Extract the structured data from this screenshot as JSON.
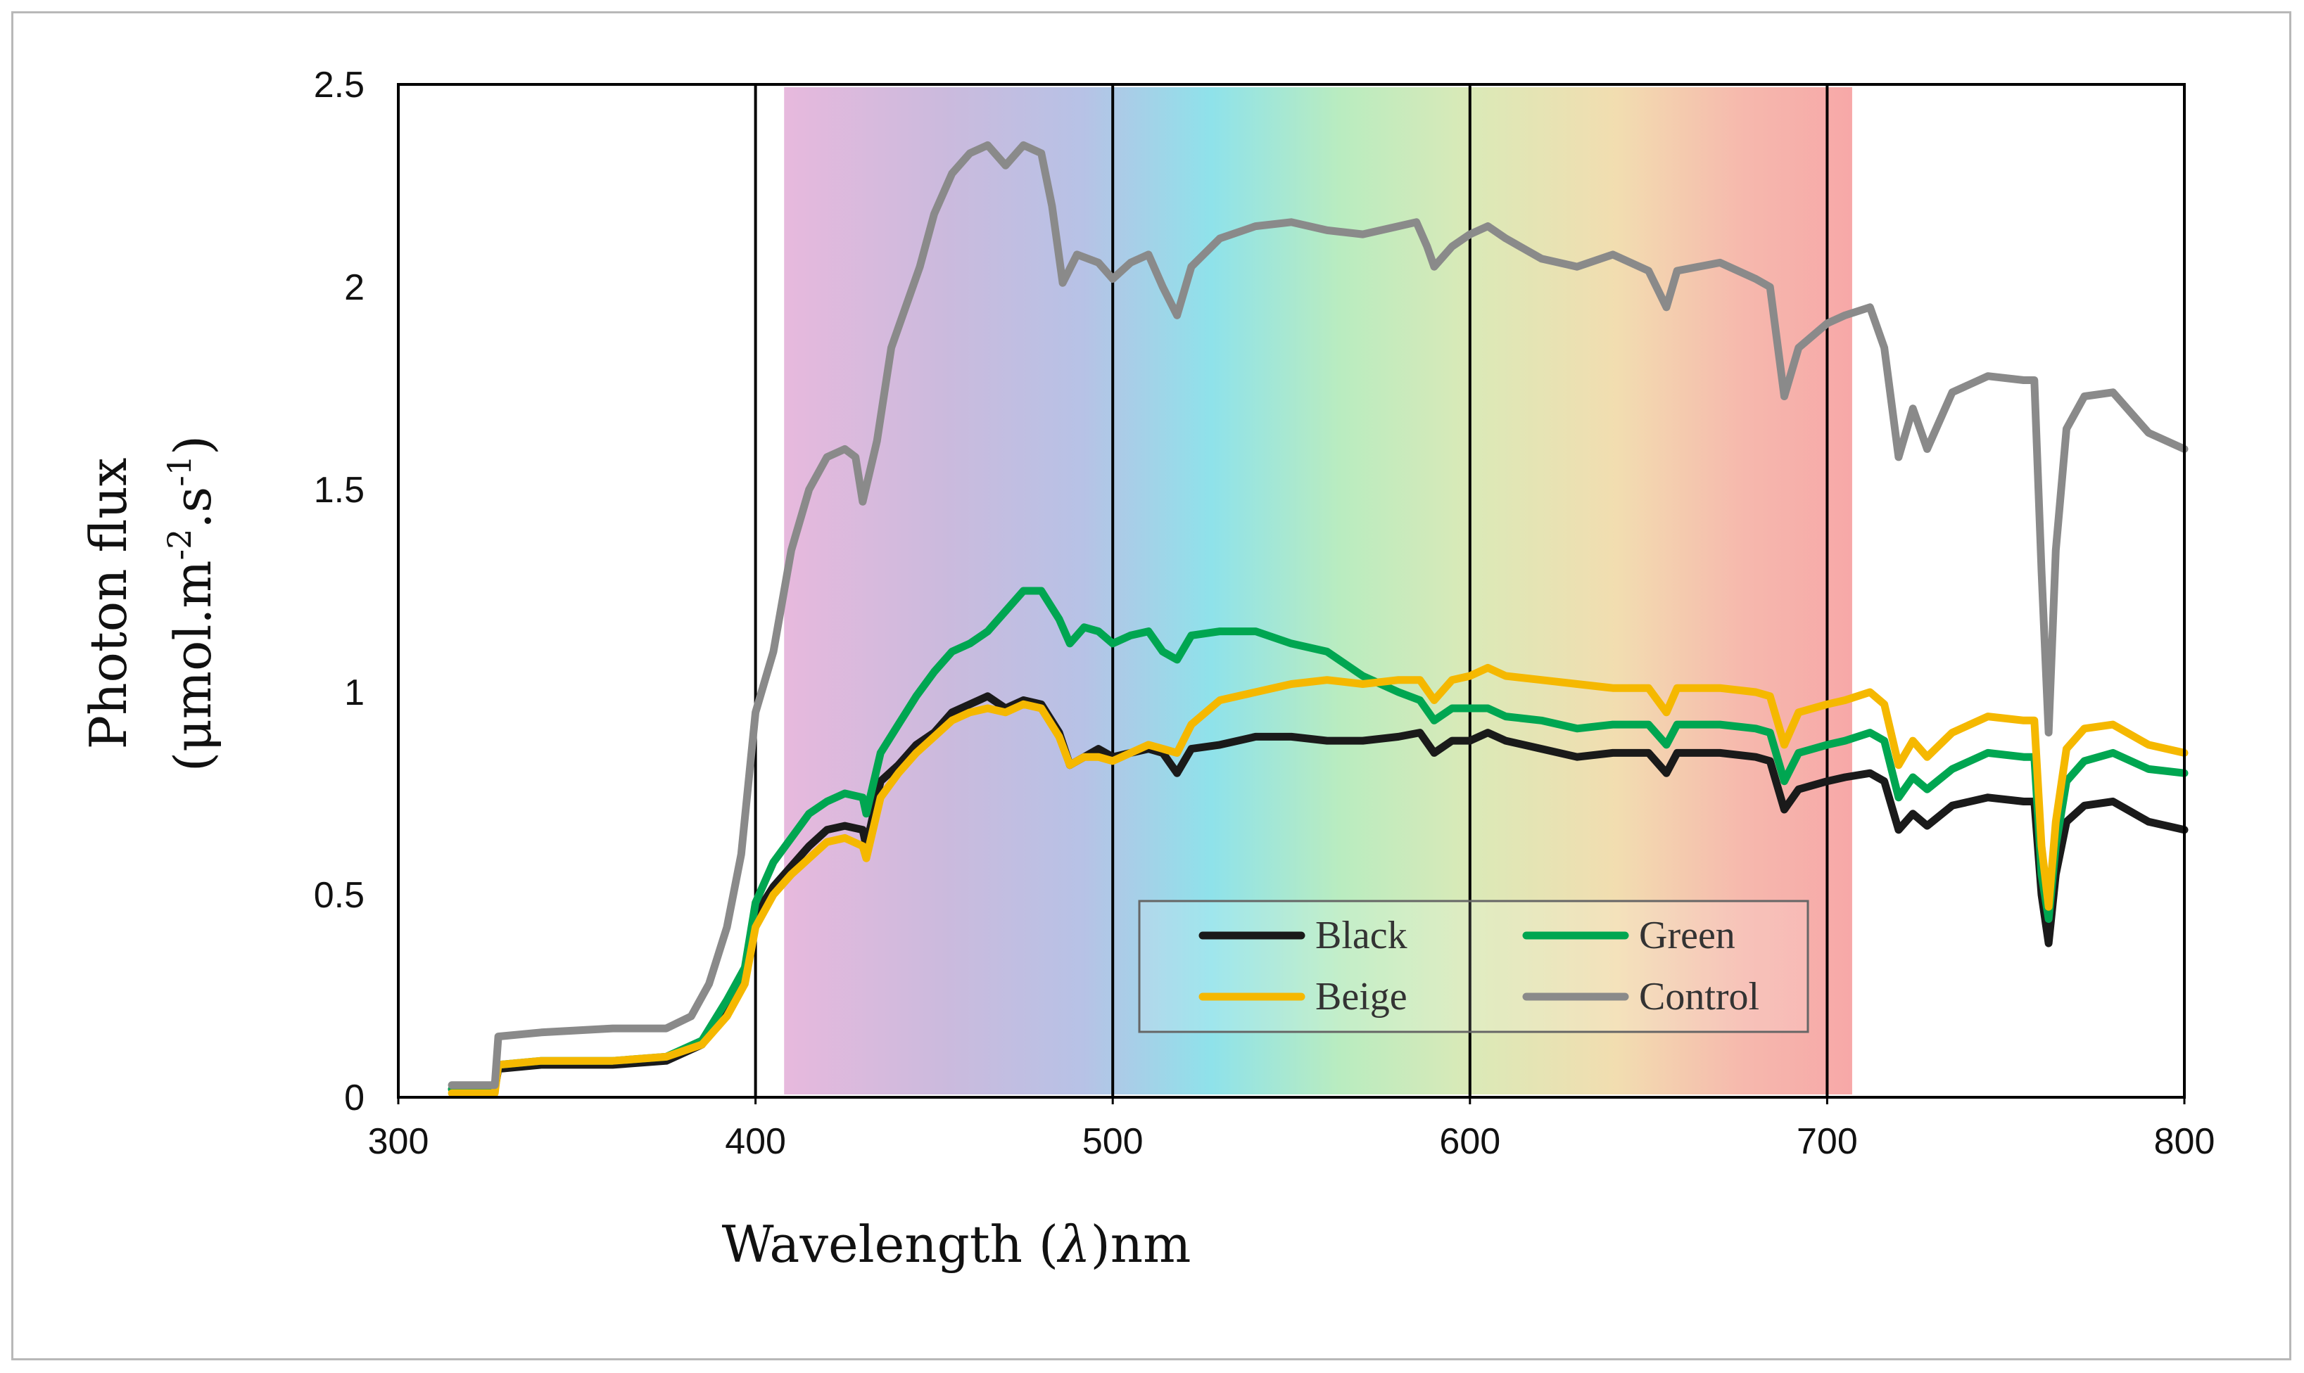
{
  "chart_data": {
    "type": "line",
    "xlabel_main": "Wavelength (",
    "xlabel_symbol": "λ",
    "xlabel_unit": ")nm",
    "ylabel_line1": "Photon flux",
    "ylabel_line2_prefix": "(μmol.m",
    "ylabel_sup1": "-2",
    "ylabel_mid": ".s",
    "ylabel_sup2": "-1",
    "ylabel_suffix": ")",
    "xlim": [
      300,
      800
    ],
    "ylim": [
      0,
      2.5
    ],
    "xticks": [
      "300",
      "400",
      "500",
      "600",
      "700",
      "800"
    ],
    "yticks": [
      "0",
      "0.5",
      "1",
      "1.5",
      "2",
      "2.5"
    ],
    "vertical_lines": [
      400,
      500,
      600,
      700
    ],
    "spectrum_band": [
      408,
      707
    ],
    "legend_position": "bottom-center",
    "series": [
      {
        "name": "Black",
        "color": "#1a1a1a",
        "points": [
          [
            315,
            0.02
          ],
          [
            327,
            0.02
          ],
          [
            328,
            0.07
          ],
          [
            340,
            0.08
          ],
          [
            360,
            0.08
          ],
          [
            375,
            0.09
          ],
          [
            385,
            0.13
          ],
          [
            392,
            0.22
          ],
          [
            397,
            0.3
          ],
          [
            400,
            0.45
          ],
          [
            405,
            0.52
          ],
          [
            410,
            0.57
          ],
          [
            415,
            0.62
          ],
          [
            420,
            0.66
          ],
          [
            425,
            0.67
          ],
          [
            430,
            0.66
          ],
          [
            431,
            0.62
          ],
          [
            435,
            0.78
          ],
          [
            440,
            0.82
          ],
          [
            445,
            0.87
          ],
          [
            450,
            0.9
          ],
          [
            455,
            0.95
          ],
          [
            460,
            0.97
          ],
          [
            465,
            0.99
          ],
          [
            470,
            0.96
          ],
          [
            475,
            0.98
          ],
          [
            480,
            0.97
          ],
          [
            485,
            0.9
          ],
          [
            488,
            0.82
          ],
          [
            492,
            0.84
          ],
          [
            496,
            0.86
          ],
          [
            500,
            0.84
          ],
          [
            505,
            0.85
          ],
          [
            510,
            0.86
          ],
          [
            514,
            0.85
          ],
          [
            518,
            0.8
          ],
          [
            522,
            0.86
          ],
          [
            530,
            0.87
          ],
          [
            540,
            0.89
          ],
          [
            550,
            0.89
          ],
          [
            560,
            0.88
          ],
          [
            570,
            0.88
          ],
          [
            580,
            0.89
          ],
          [
            586,
            0.9
          ],
          [
            590,
            0.85
          ],
          [
            595,
            0.88
          ],
          [
            600,
            0.88
          ],
          [
            605,
            0.9
          ],
          [
            610,
            0.88
          ],
          [
            620,
            0.86
          ],
          [
            630,
            0.84
          ],
          [
            640,
            0.85
          ],
          [
            650,
            0.85
          ],
          [
            655,
            0.8
          ],
          [
            658,
            0.85
          ],
          [
            670,
            0.85
          ],
          [
            680,
            0.84
          ],
          [
            684,
            0.83
          ],
          [
            688,
            0.71
          ],
          [
            692,
            0.76
          ],
          [
            700,
            0.78
          ],
          [
            705,
            0.79
          ],
          [
            712,
            0.8
          ],
          [
            716,
            0.78
          ],
          [
            720,
            0.66
          ],
          [
            724,
            0.7
          ],
          [
            728,
            0.67
          ],
          [
            735,
            0.72
          ],
          [
            745,
            0.74
          ],
          [
            755,
            0.73
          ],
          [
            758,
            0.73
          ],
          [
            760,
            0.5
          ],
          [
            762,
            0.38
          ],
          [
            764,
            0.55
          ],
          [
            767,
            0.68
          ],
          [
            772,
            0.72
          ],
          [
            780,
            0.73
          ],
          [
            790,
            0.68
          ],
          [
            800,
            0.66
          ]
        ]
      },
      {
        "name": "Green",
        "color": "#00a651",
        "points": [
          [
            315,
            0.02
          ],
          [
            327,
            0.02
          ],
          [
            328,
            0.08
          ],
          [
            340,
            0.09
          ],
          [
            360,
            0.09
          ],
          [
            375,
            0.1
          ],
          [
            385,
            0.14
          ],
          [
            392,
            0.24
          ],
          [
            397,
            0.32
          ],
          [
            400,
            0.48
          ],
          [
            405,
            0.58
          ],
          [
            410,
            0.64
          ],
          [
            415,
            0.7
          ],
          [
            420,
            0.73
          ],
          [
            425,
            0.75
          ],
          [
            430,
            0.74
          ],
          [
            431,
            0.7
          ],
          [
            435,
            0.85
          ],
          [
            440,
            0.92
          ],
          [
            445,
            0.99
          ],
          [
            450,
            1.05
          ],
          [
            455,
            1.1
          ],
          [
            460,
            1.12
          ],
          [
            465,
            1.15
          ],
          [
            470,
            1.2
          ],
          [
            475,
            1.25
          ],
          [
            480,
            1.25
          ],
          [
            485,
            1.18
          ],
          [
            488,
            1.12
          ],
          [
            492,
            1.16
          ],
          [
            496,
            1.15
          ],
          [
            500,
            1.12
          ],
          [
            505,
            1.14
          ],
          [
            510,
            1.15
          ],
          [
            514,
            1.1
          ],
          [
            518,
            1.08
          ],
          [
            522,
            1.14
          ],
          [
            530,
            1.15
          ],
          [
            540,
            1.15
          ],
          [
            550,
            1.12
          ],
          [
            560,
            1.1
          ],
          [
            570,
            1.04
          ],
          [
            580,
            1.0
          ],
          [
            586,
            0.98
          ],
          [
            590,
            0.93
          ],
          [
            595,
            0.96
          ],
          [
            600,
            0.96
          ],
          [
            605,
            0.96
          ],
          [
            610,
            0.94
          ],
          [
            620,
            0.93
          ],
          [
            630,
            0.91
          ],
          [
            640,
            0.92
          ],
          [
            650,
            0.92
          ],
          [
            655,
            0.87
          ],
          [
            658,
            0.92
          ],
          [
            670,
            0.92
          ],
          [
            680,
            0.91
          ],
          [
            684,
            0.9
          ],
          [
            688,
            0.78
          ],
          [
            692,
            0.85
          ],
          [
            700,
            0.87
          ],
          [
            705,
            0.88
          ],
          [
            712,
            0.9
          ],
          [
            716,
            0.88
          ],
          [
            720,
            0.74
          ],
          [
            724,
            0.79
          ],
          [
            728,
            0.76
          ],
          [
            735,
            0.81
          ],
          [
            745,
            0.85
          ],
          [
            755,
            0.84
          ],
          [
            758,
            0.84
          ],
          [
            760,
            0.55
          ],
          [
            762,
            0.44
          ],
          [
            764,
            0.62
          ],
          [
            767,
            0.78
          ],
          [
            772,
            0.83
          ],
          [
            780,
            0.85
          ],
          [
            790,
            0.81
          ],
          [
            800,
            0.8
          ]
        ]
      },
      {
        "name": "Beige",
        "color": "#f5b800",
        "points": [
          [
            315,
            0.01
          ],
          [
            327,
            0.01
          ],
          [
            328,
            0.08
          ],
          [
            340,
            0.09
          ],
          [
            360,
            0.09
          ],
          [
            375,
            0.1
          ],
          [
            385,
            0.13
          ],
          [
            392,
            0.2
          ],
          [
            397,
            0.28
          ],
          [
            400,
            0.42
          ],
          [
            405,
            0.5
          ],
          [
            410,
            0.55
          ],
          [
            415,
            0.59
          ],
          [
            420,
            0.63
          ],
          [
            425,
            0.64
          ],
          [
            430,
            0.62
          ],
          [
            431,
            0.59
          ],
          [
            435,
            0.74
          ],
          [
            440,
            0.8
          ],
          [
            445,
            0.85
          ],
          [
            450,
            0.89
          ],
          [
            455,
            0.93
          ],
          [
            460,
            0.95
          ],
          [
            465,
            0.96
          ],
          [
            470,
            0.95
          ],
          [
            475,
            0.97
          ],
          [
            480,
            0.96
          ],
          [
            485,
            0.89
          ],
          [
            488,
            0.82
          ],
          [
            492,
            0.84
          ],
          [
            496,
            0.84
          ],
          [
            500,
            0.83
          ],
          [
            505,
            0.85
          ],
          [
            510,
            0.87
          ],
          [
            514,
            0.86
          ],
          [
            518,
            0.85
          ],
          [
            522,
            0.92
          ],
          [
            530,
            0.98
          ],
          [
            540,
            1.0
          ],
          [
            550,
            1.02
          ],
          [
            560,
            1.03
          ],
          [
            570,
            1.02
          ],
          [
            580,
            1.03
          ],
          [
            586,
            1.03
          ],
          [
            590,
            0.98
          ],
          [
            595,
            1.03
          ],
          [
            600,
            1.04
          ],
          [
            605,
            1.06
          ],
          [
            610,
            1.04
          ],
          [
            620,
            1.03
          ],
          [
            630,
            1.02
          ],
          [
            640,
            1.01
          ],
          [
            650,
            1.01
          ],
          [
            655,
            0.95
          ],
          [
            658,
            1.01
          ],
          [
            670,
            1.01
          ],
          [
            680,
            1.0
          ],
          [
            684,
            0.99
          ],
          [
            688,
            0.87
          ],
          [
            692,
            0.95
          ],
          [
            700,
            0.97
          ],
          [
            705,
            0.98
          ],
          [
            712,
            1.0
          ],
          [
            716,
            0.97
          ],
          [
            720,
            0.82
          ],
          [
            724,
            0.88
          ],
          [
            728,
            0.84
          ],
          [
            735,
            0.9
          ],
          [
            745,
            0.94
          ],
          [
            755,
            0.93
          ],
          [
            758,
            0.93
          ],
          [
            760,
            0.62
          ],
          [
            762,
            0.47
          ],
          [
            764,
            0.68
          ],
          [
            767,
            0.86
          ],
          [
            772,
            0.91
          ],
          [
            780,
            0.92
          ],
          [
            790,
            0.87
          ],
          [
            800,
            0.85
          ]
        ]
      },
      {
        "name": "Control",
        "color": "#8a8a8a",
        "points": [
          [
            315,
            0.03
          ],
          [
            327,
            0.03
          ],
          [
            328,
            0.15
          ],
          [
            340,
            0.16
          ],
          [
            360,
            0.17
          ],
          [
            375,
            0.17
          ],
          [
            382,
            0.2
          ],
          [
            387,
            0.28
          ],
          [
            392,
            0.42
          ],
          [
            396,
            0.6
          ],
          [
            400,
            0.95
          ],
          [
            405,
            1.1
          ],
          [
            410,
            1.35
          ],
          [
            415,
            1.5
          ],
          [
            420,
            1.58
          ],
          [
            425,
            1.6
          ],
          [
            428,
            1.58
          ],
          [
            430,
            1.47
          ],
          [
            434,
            1.62
          ],
          [
            438,
            1.85
          ],
          [
            442,
            1.95
          ],
          [
            446,
            2.05
          ],
          [
            450,
            2.18
          ],
          [
            455,
            2.28
          ],
          [
            460,
            2.33
          ],
          [
            465,
            2.35
          ],
          [
            470,
            2.3
          ],
          [
            475,
            2.35
          ],
          [
            480,
            2.33
          ],
          [
            483,
            2.2
          ],
          [
            486,
            2.01
          ],
          [
            490,
            2.08
          ],
          [
            496,
            2.06
          ],
          [
            500,
            2.02
          ],
          [
            505,
            2.06
          ],
          [
            510,
            2.08
          ],
          [
            514,
            2.0
          ],
          [
            518,
            1.93
          ],
          [
            522,
            2.05
          ],
          [
            530,
            2.12
          ],
          [
            540,
            2.15
          ],
          [
            550,
            2.16
          ],
          [
            560,
            2.14
          ],
          [
            570,
            2.13
          ],
          [
            580,
            2.15
          ],
          [
            585,
            2.16
          ],
          [
            588,
            2.1
          ],
          [
            590,
            2.05
          ],
          [
            595,
            2.1
          ],
          [
            600,
            2.13
          ],
          [
            605,
            2.15
          ],
          [
            610,
            2.12
          ],
          [
            620,
            2.07
          ],
          [
            630,
            2.05
          ],
          [
            640,
            2.08
          ],
          [
            650,
            2.04
          ],
          [
            655,
            1.95
          ],
          [
            658,
            2.04
          ],
          [
            670,
            2.06
          ],
          [
            680,
            2.02
          ],
          [
            684,
            2.0
          ],
          [
            688,
            1.73
          ],
          [
            692,
            1.85
          ],
          [
            700,
            1.91
          ],
          [
            705,
            1.93
          ],
          [
            712,
            1.95
          ],
          [
            716,
            1.85
          ],
          [
            720,
            1.58
          ],
          [
            724,
            1.7
          ],
          [
            728,
            1.6
          ],
          [
            735,
            1.74
          ],
          [
            745,
            1.78
          ],
          [
            755,
            1.77
          ],
          [
            758,
            1.77
          ],
          [
            760,
            1.3
          ],
          [
            762,
            0.9
          ],
          [
            764,
            1.35
          ],
          [
            767,
            1.65
          ],
          [
            772,
            1.73
          ],
          [
            780,
            1.74
          ],
          [
            790,
            1.64
          ],
          [
            800,
            1.6
          ]
        ]
      }
    ]
  }
}
